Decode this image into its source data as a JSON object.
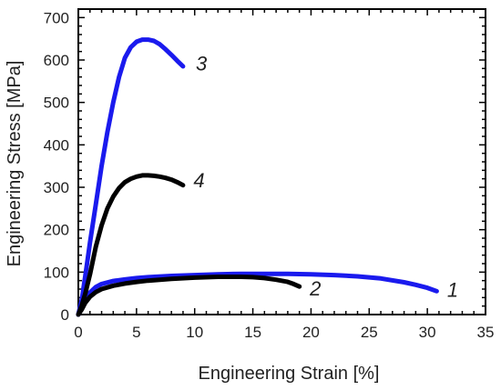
{
  "chart_data": {
    "type": "line",
    "xlabel": "Engineering Strain [%]",
    "ylabel": "Engineering Stress [MPa]",
    "xlim": [
      0,
      35
    ],
    "ylim": [
      0,
      720
    ],
    "xticks": [
      0,
      5,
      10,
      15,
      20,
      25,
      30,
      35
    ],
    "yticks": [
      0,
      100,
      200,
      300,
      400,
      500,
      600,
      700
    ],
    "grid": false,
    "legend": "none",
    "series": [
      {
        "name": "1",
        "color": "#1a1aee",
        "x": [
          0,
          0.3,
          0.6,
          1.0,
          1.5,
          2.0,
          3.0,
          4.0,
          5.0,
          6.0,
          8.0,
          10.0,
          12.0,
          14.0,
          16.0,
          18.0,
          20.0,
          22.0,
          24.0,
          26.0,
          28.0,
          29.0,
          30.0,
          30.8
        ],
        "y": [
          0,
          15,
          35,
          52,
          65,
          72,
          79,
          83,
          86,
          88,
          91,
          93,
          95,
          96,
          96,
          96,
          95,
          93,
          90,
          85,
          76,
          70,
          63,
          55
        ]
      },
      {
        "name": "2",
        "color": "#000000",
        "x": [
          0,
          0.3,
          0.6,
          1.0,
          1.5,
          2.0,
          3.0,
          4.0,
          5.0,
          6.0,
          8.0,
          10.0,
          12.0,
          14.0,
          15.0,
          16.0,
          17.0,
          18.0,
          18.5,
          19.0
        ],
        "y": [
          0,
          12,
          28,
          42,
          53,
          60,
          68,
          73,
          77,
          80,
          84,
          87,
          89,
          89,
          88,
          86,
          82,
          77,
          72,
          66
        ]
      },
      {
        "name": "3",
        "color": "#1a1aee",
        "x": [
          0,
          0.3,
          0.7,
          1.0,
          1.5,
          2.0,
          2.5,
          3.0,
          3.5,
          4.0,
          4.5,
          5.0,
          5.5,
          6.0,
          6.5,
          7.0,
          7.5,
          8.0,
          8.5,
          9.0
        ],
        "y": [
          0,
          35,
          110,
          170,
          260,
          350,
          430,
          500,
          560,
          605,
          630,
          643,
          648,
          648,
          645,
          637,
          625,
          612,
          598,
          585
        ]
      },
      {
        "name": "4",
        "color": "#000000",
        "x": [
          0,
          0.3,
          0.6,
          1.0,
          1.5,
          2.0,
          2.5,
          3.0,
          3.5,
          4.0,
          4.5,
          5.0,
          5.5,
          6.0,
          6.5,
          7.0,
          7.5,
          8.0,
          8.5,
          9.0
        ],
        "y": [
          0,
          22,
          50,
          95,
          160,
          210,
          250,
          278,
          298,
          312,
          320,
          325,
          328,
          328,
          327,
          325,
          322,
          318,
          312,
          305
        ]
      }
    ],
    "annotations": [
      {
        "text": "3",
        "x": 10.1,
        "y": 575
      },
      {
        "text": "4",
        "x": 9.9,
        "y": 300
      },
      {
        "text": "2",
        "x": 19.9,
        "y": 45
      },
      {
        "text": "1",
        "x": 31.7,
        "y": 42
      }
    ]
  }
}
